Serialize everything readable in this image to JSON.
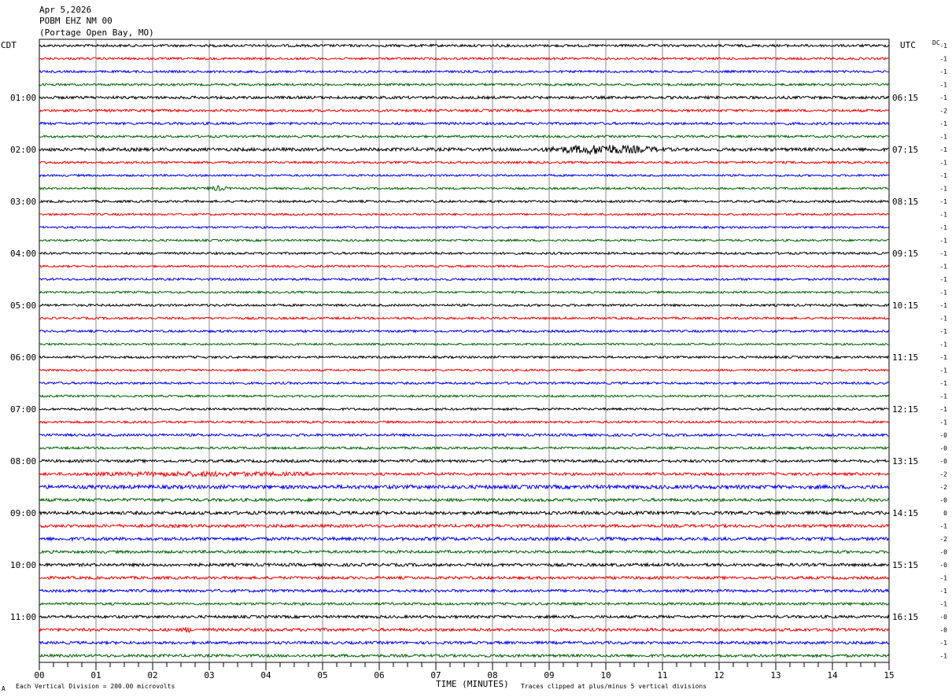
{
  "header": {
    "date": "Apr 5,2026",
    "station": "POBM EHZ NM 00",
    "location": "(Portage Open Bay, MO)"
  },
  "left_tz": "CDT",
  "right_tz": "UTC",
  "dc_label": "DC",
  "footer": {
    "scale_note": "Each Vertical Division =  200.00 microvolts",
    "xlabel": "TIME (MINUTES)",
    "clip_note": "Traces clipped at plus/minus 5 vertical divisions",
    "corner_mark": "A"
  },
  "colors": {
    "cycle": [
      "#000000",
      "#ff0000",
      "#0000ff",
      "#006400"
    ],
    "grid": "#888888"
  },
  "chart_data": {
    "type": "line",
    "title": "",
    "xlabel": "TIME (MINUTES)",
    "ylabel": "",
    "xlim": [
      0,
      15
    ],
    "x_ticks": [
      "00",
      "01",
      "02",
      "03",
      "04",
      "05",
      "06",
      "07",
      "08",
      "09",
      "10",
      "11",
      "12",
      "13",
      "14",
      "15"
    ],
    "row_count": 48,
    "row_minutes": 15,
    "hour_labels_left": [
      "01:00",
      "02:00",
      "03:00",
      "04:00",
      "05:00",
      "06:00",
      "07:00",
      "08:00",
      "09:00",
      "10:00",
      "11:00"
    ],
    "hour_labels_right": [
      "06:15",
      "07:15",
      "08:15",
      "09:15",
      "10:15",
      "11:15",
      "12:15",
      "13:15",
      "14:15",
      "15:15",
      "16:15"
    ],
    "dc_offsets": [
      "-1",
      "-1",
      "-1",
      "-1",
      "-1",
      "-2",
      "-1",
      "-1",
      "-1",
      "-1",
      "-1",
      "-1",
      "-1",
      "-1",
      "-1",
      "-1",
      "-1",
      "-1",
      "-1",
      "-1",
      "-1",
      "-1",
      "-1",
      "-1",
      "-1",
      "-1",
      "-1",
      "-1",
      "-1",
      "-1",
      "-0",
      "-0",
      "-0",
      "-2",
      "-2",
      "-0",
      "0",
      "-1",
      "-2",
      "-0",
      "-0",
      "-1",
      "-1",
      "-1",
      "-0",
      "-0",
      "-1",
      "-1"
    ],
    "series_color_cycle": [
      "black",
      "red",
      "blue",
      "green"
    ],
    "amplitude_rel": [
      1.0,
      0.9,
      0.9,
      0.9,
      1.1,
      1.0,
      1.0,
      0.9,
      1.3,
      0.9,
      0.8,
      0.8,
      0.9,
      0.8,
      0.8,
      0.8,
      0.9,
      0.8,
      0.9,
      0.8,
      0.9,
      0.9,
      0.9,
      0.8,
      0.9,
      0.8,
      0.9,
      0.8,
      0.9,
      0.9,
      1.0,
      0.9,
      1.1,
      1.1,
      1.5,
      1.2,
      1.3,
      1.2,
      1.3,
      1.1,
      1.2,
      1.1,
      1.1,
      1.0,
      1.1,
      1.2,
      1.1,
      1.1
    ],
    "events": [
      {
        "row": 8,
        "start_min": 8.7,
        "end_min": 11.2,
        "peak": 5.0
      },
      {
        "row": 11,
        "start_min": 2.9,
        "end_min": 3.4,
        "peak": 2.4
      },
      {
        "row": 33,
        "start_min": 0.3,
        "end_min": 5.5,
        "peak": 1.8
      },
      {
        "row": 45,
        "start_min": 2.5,
        "end_min": 2.7,
        "peak": 2.5
      }
    ]
  }
}
